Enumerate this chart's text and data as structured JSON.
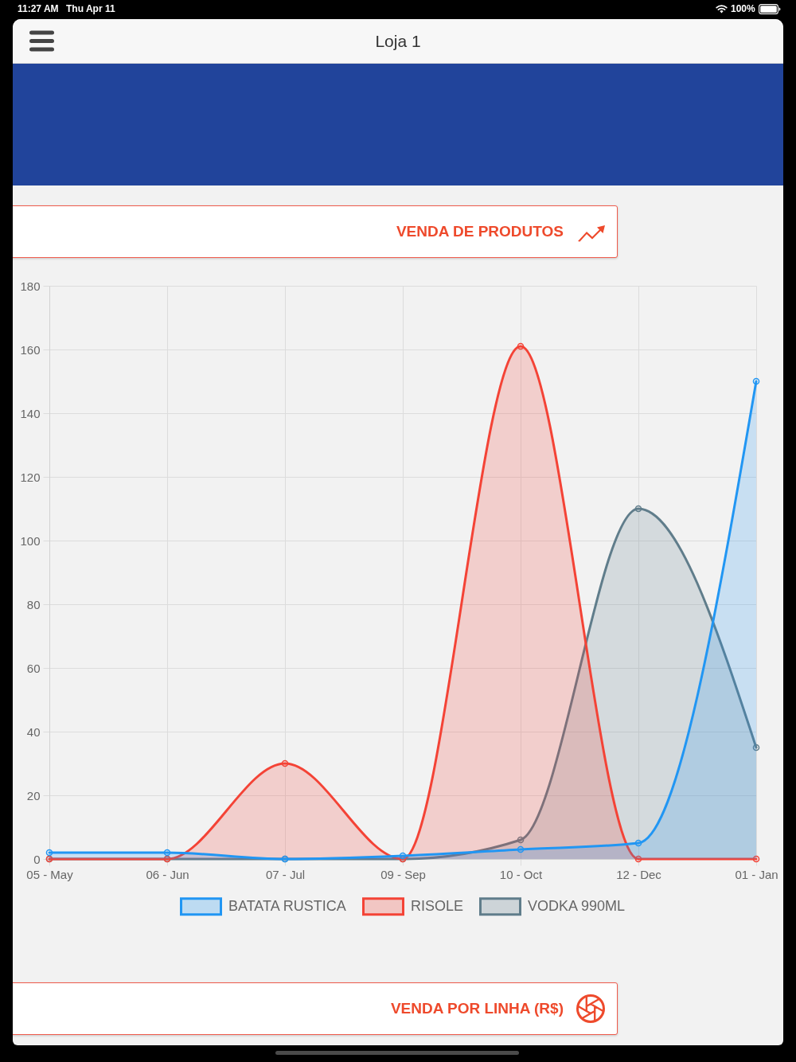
{
  "chart_data": {
    "type": "area",
    "title": "VENDA DE PRODUTOS",
    "categories": [
      "05 - May",
      "06 - Jun",
      "07 - Jul",
      "09 - Sep",
      "10 - Oct",
      "12 - Dec",
      "01 - Jan"
    ],
    "series": [
      {
        "name": "BATATA RUSTICA",
        "color": "#2196f3",
        "values": [
          2,
          2,
          0,
          1,
          3,
          5,
          150
        ]
      },
      {
        "name": "RISOLE",
        "color": "#f44336",
        "values": [
          0,
          0,
          30,
          0,
          161,
          0,
          0
        ]
      },
      {
        "name": "VODKA 990ML",
        "color": "#607d8b",
        "values": [
          0,
          0,
          0,
          0,
          6,
          110,
          35
        ]
      }
    ],
    "ylim": [
      0,
      180
    ],
    "yticks": [
      0,
      20,
      40,
      60,
      80,
      100,
      120,
      140,
      160,
      180
    ],
    "grid": true,
    "legend": "bottom",
    "marker": "circle",
    "annotations": [
      "11:27 AM",
      "Thu Apr 11",
      "100%",
      "Loja 1",
      "VENDA POR LINHA (R$)"
    ]
  }
}
